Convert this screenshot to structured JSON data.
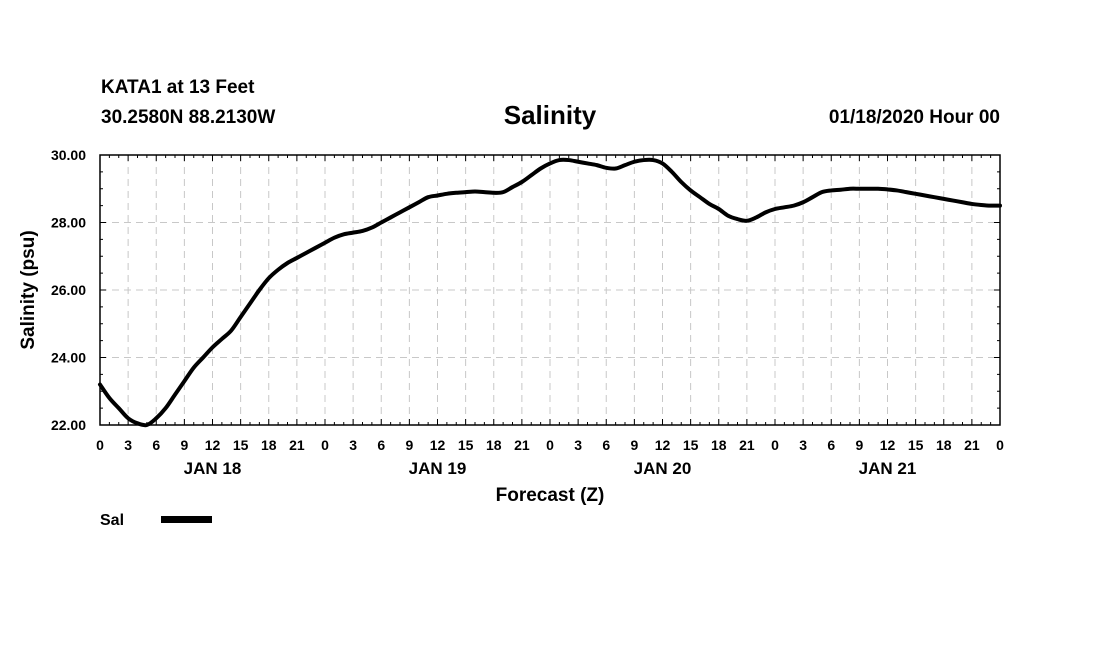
{
  "header": {
    "station": "KATA1 at 13 Feet",
    "coords": "30.2580N 88.2130W",
    "title": "Salinity",
    "datetime": "01/18/2020 Hour 00"
  },
  "chart_data": {
    "type": "line",
    "title": "Salinity",
    "xlabel": "Forecast (Z)",
    "ylabel": "Salinity (psu)",
    "xlim": [
      0,
      96
    ],
    "ylim": [
      22,
      30
    ],
    "y_ticks": [
      "22.00",
      "24.00",
      "26.00",
      "28.00",
      "30.00"
    ],
    "y_tick_values": [
      22,
      24,
      26,
      28,
      30
    ],
    "x_tick_labels": [
      "0",
      "3",
      "6",
      "9",
      "12",
      "15",
      "18",
      "21",
      "0",
      "3",
      "6",
      "9",
      "12",
      "15",
      "18",
      "21",
      "0",
      "3",
      "6",
      "9",
      "12",
      "15",
      "18",
      "21",
      "0",
      "3",
      "6",
      "9",
      "12",
      "15",
      "18",
      "21",
      "0"
    ],
    "day_labels": [
      {
        "label": "JAN 18",
        "hour": 12
      },
      {
        "label": "JAN 19",
        "hour": 36
      },
      {
        "label": "JAN 20",
        "hour": 60
      },
      {
        "label": "JAN 21",
        "hour": 84
      }
    ],
    "grid": true,
    "legend_position": "bottom-left",
    "series": [
      {
        "name": "Sal",
        "color": "#000000",
        "x": [
          0,
          1,
          2,
          3,
          4,
          5,
          6,
          7,
          8,
          9,
          10,
          11,
          12,
          13,
          14,
          15,
          16,
          17,
          18,
          19,
          20,
          21,
          22,
          23,
          24,
          25,
          26,
          27,
          28,
          29,
          30,
          31,
          32,
          33,
          34,
          35,
          36,
          37,
          38,
          39,
          40,
          41,
          42,
          43,
          44,
          45,
          46,
          47,
          48,
          49,
          50,
          51,
          52,
          53,
          54,
          55,
          56,
          57,
          58,
          59,
          60,
          61,
          62,
          63,
          64,
          65,
          66,
          67,
          68,
          69,
          70,
          71,
          72,
          73,
          74,
          75,
          76,
          77,
          78,
          79,
          80,
          81,
          82,
          83,
          84,
          85,
          86,
          87,
          88,
          89,
          90,
          91,
          92,
          93,
          94,
          95,
          96
        ],
        "y": [
          23.2,
          22.8,
          22.5,
          22.2,
          22.05,
          22.0,
          22.2,
          22.5,
          22.9,
          23.3,
          23.7,
          24.0,
          24.3,
          24.55,
          24.8,
          25.2,
          25.6,
          26.0,
          26.35,
          26.6,
          26.8,
          26.95,
          27.1,
          27.25,
          27.4,
          27.55,
          27.65,
          27.7,
          27.75,
          27.85,
          28.0,
          28.15,
          28.3,
          28.45,
          28.6,
          28.75,
          28.8,
          28.85,
          28.88,
          28.9,
          28.92,
          28.9,
          28.88,
          28.9,
          29.05,
          29.2,
          29.4,
          29.6,
          29.75,
          29.85,
          29.85,
          29.8,
          29.75,
          29.7,
          29.62,
          29.6,
          29.7,
          29.8,
          29.85,
          29.85,
          29.75,
          29.5,
          29.2,
          28.95,
          28.75,
          28.55,
          28.4,
          28.2,
          28.1,
          28.05,
          28.15,
          28.3,
          28.4,
          28.45,
          28.5,
          28.6,
          28.75,
          28.9,
          28.95,
          28.97,
          29.0,
          29.0,
          29.0,
          29.0,
          28.98,
          28.95,
          28.9,
          28.85,
          28.8,
          28.75,
          28.7,
          28.65,
          28.6,
          28.55,
          28.52,
          28.5,
          28.5
        ]
      }
    ]
  }
}
